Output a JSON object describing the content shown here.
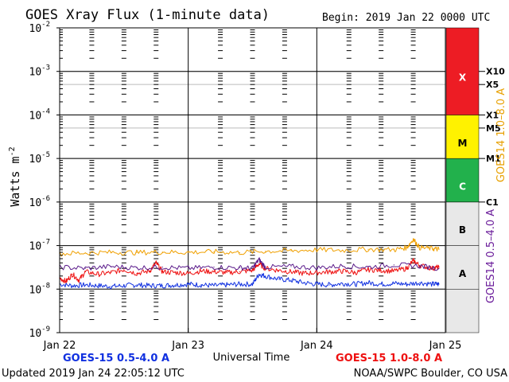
{
  "chart_data": {
    "type": "line",
    "title": "GOES Xray Flux (1-minute data)",
    "begin_label": "Begin:  2019 Jan 22 0000 UTC",
    "ylabel": "Watts m",
    "ylabel_sup": "-2",
    "xlabel": "Universal Time",
    "y_scale": "log",
    "ylim": [
      1e-09,
      0.01
    ],
    "y_ticks": [
      {
        "value": 0.01,
        "label_base": "10",
        "label_exp": "-2"
      },
      {
        "value": 0.001,
        "label_base": "10",
        "label_exp": "-3"
      },
      {
        "value": 0.0001,
        "label_base": "10",
        "label_exp": "-4"
      },
      {
        "value": 1e-05,
        "label_base": "10",
        "label_exp": "-5"
      },
      {
        "value": 1e-06,
        "label_base": "10",
        "label_exp": "-6"
      },
      {
        "value": 1e-07,
        "label_base": "10",
        "label_exp": "-7"
      },
      {
        "value": 1e-08,
        "label_base": "10",
        "label_exp": "-8"
      },
      {
        "value": 1e-09,
        "label_base": "10",
        "label_exp": "-9"
      }
    ],
    "x_unit": "days since 2019 Jan 22 0000 UTC",
    "xlim": [
      0,
      3
    ],
    "x_ticks": [
      {
        "value": 0,
        "label": "Jan 22"
      },
      {
        "value": 1,
        "label": "Jan 23"
      },
      {
        "value": 2,
        "label": "Jan 24"
      },
      {
        "value": 3,
        "label": "Jan 25"
      }
    ],
    "flare_classes": [
      {
        "label": "A",
        "from": 1e-08,
        "to": 1e-07,
        "color": "#e8e8e8"
      },
      {
        "label": "B",
        "from": 1e-07,
        "to": 1e-06,
        "color": "#e8e8e8"
      },
      {
        "label": "C",
        "from": 1e-06,
        "to": 1e-05,
        "color": "#22b14c"
      },
      {
        "label": "M",
        "from": 1e-05,
        "to": 0.0001,
        "color": "#fff200"
      },
      {
        "label": "X",
        "from": 0.0001,
        "to": 0.01,
        "color": "#ed1c24"
      }
    ],
    "class_markers": [
      {
        "label": "X10",
        "value": 0.001
      },
      {
        "label": "X5",
        "value": 0.0005
      },
      {
        "label": "X1",
        "value": 0.0001
      },
      {
        "label": "M5",
        "value": 5e-05
      },
      {
        "label": "M1",
        "value": 1e-05
      },
      {
        "label": "C1",
        "value": 1e-06
      }
    ],
    "right_axis_labels": [
      {
        "text": "GOES14 1.0–8.0 A",
        "color": "#e8a000"
      },
      {
        "text": "GOES14 0.5–4.0 A",
        "color": "#6a1b9a"
      }
    ],
    "series": [
      {
        "name": "GOES-15 0.5-4.0 A",
        "color": "#1030e0",
        "x": [
          0,
          0.1,
          0.2,
          0.3,
          0.4,
          0.5,
          0.6,
          0.7,
          0.8,
          0.9,
          1.0,
          1.1,
          1.2,
          1.3,
          1.4,
          1.5,
          1.55,
          1.6,
          1.7,
          1.8,
          1.9,
          2.0,
          2.1,
          2.2,
          2.3,
          2.4,
          2.5,
          2.6,
          2.7,
          2.8,
          2.9,
          2.95
        ],
        "y": [
          1.3e-08,
          1.2e-08,
          1.25e-08,
          1.2e-08,
          1.15e-08,
          1.2e-08,
          1.25e-08,
          1.2e-08,
          1.2e-08,
          1.25e-08,
          1.3e-08,
          1.25e-08,
          1.2e-08,
          1.25e-08,
          1.3e-08,
          1.3e-08,
          2.2e-08,
          2e-08,
          1.7e-08,
          1.6e-08,
          1.4e-08,
          1.3e-08,
          1.25e-08,
          1.35e-08,
          1.3e-08,
          1.4e-08,
          1.3e-08,
          1.35e-08,
          1.3e-08,
          1.4e-08,
          1.3e-08,
          1.3e-08
        ]
      },
      {
        "name": "GOES-15 1.0-8.0 A",
        "color": "#ee1010",
        "x": [
          0,
          0.05,
          0.1,
          0.15,
          0.2,
          0.3,
          0.4,
          0.5,
          0.6,
          0.7,
          0.75,
          0.8,
          0.9,
          1.0,
          1.1,
          1.2,
          1.3,
          1.4,
          1.5,
          1.55,
          1.6,
          1.7,
          1.8,
          1.9,
          2.0,
          2.1,
          2.2,
          2.3,
          2.4,
          2.5,
          2.6,
          2.7,
          2.75,
          2.8,
          2.9,
          2.95
        ],
        "y": [
          1.8e-08,
          1.5e-08,
          2.2e-08,
          1.6e-08,
          2.5e-08,
          2.2e-08,
          2.4e-08,
          2.8e-08,
          2.3e-08,
          2.6e-08,
          4e-08,
          2.5e-08,
          2.4e-08,
          2.3e-08,
          2.6e-08,
          2.5e-08,
          2.4e-08,
          2.5e-08,
          2.7e-08,
          3.8e-08,
          3e-08,
          2.7e-08,
          2.5e-08,
          2.3e-08,
          2.4e-08,
          2.5e-08,
          2.6e-08,
          2.4e-08,
          2.8e-08,
          2.7e-08,
          2.6e-08,
          3e-08,
          4.5e-08,
          3.5e-08,
          3e-08,
          3.2e-08
        ]
      },
      {
        "name": "GOES14 0.5-4.0 A",
        "color": "#5a1a8a",
        "x": [
          0,
          0.2,
          0.4,
          0.6,
          0.8,
          1.0,
          1.2,
          1.4,
          1.5,
          1.55,
          1.6,
          1.8,
          2.0,
          2.2,
          2.4,
          2.6,
          2.8,
          2.95
        ],
        "y": [
          3.2e-08,
          3e-08,
          3.3e-08,
          3.1e-08,
          3.2e-08,
          3e-08,
          3.2e-08,
          3.1e-08,
          3e-08,
          4.8e-08,
          3.2e-08,
          3.3e-08,
          3.1e-08,
          3.4e-08,
          3.2e-08,
          3.6e-08,
          3.4e-08,
          3e-08
        ]
      },
      {
        "name": "GOES14 1.0-8.0 A",
        "color": "#f0a000",
        "x": [
          0,
          0.2,
          0.4,
          0.6,
          0.8,
          1.0,
          1.2,
          1.4,
          1.6,
          1.8,
          2.0,
          2.2,
          2.4,
          2.6,
          2.7,
          2.75,
          2.8,
          2.9,
          2.95
        ],
        "y": [
          6.5e-08,
          6.8e-08,
          7e-08,
          6.9e-08,
          7.1e-08,
          7e-08,
          7.2e-08,
          6.9e-08,
          7.4e-08,
          7.6e-08,
          8e-08,
          7.8e-08,
          8.2e-08,
          8e-08,
          9e-08,
          1.4e-07,
          9e-08,
          8.5e-08,
          8.2e-08
        ]
      }
    ],
    "legend": [
      {
        "text": "GOES-15 0.5-4.0 A",
        "color": "#1030e0"
      },
      {
        "text": "GOES-15 1.0-8.0 A",
        "color": "#ee1010"
      }
    ],
    "updated": "Updated 2019 Jan 24 22:05:12 UTC",
    "credit": "NOAA/SWPC Boulder, CO USA",
    "grid": true
  }
}
